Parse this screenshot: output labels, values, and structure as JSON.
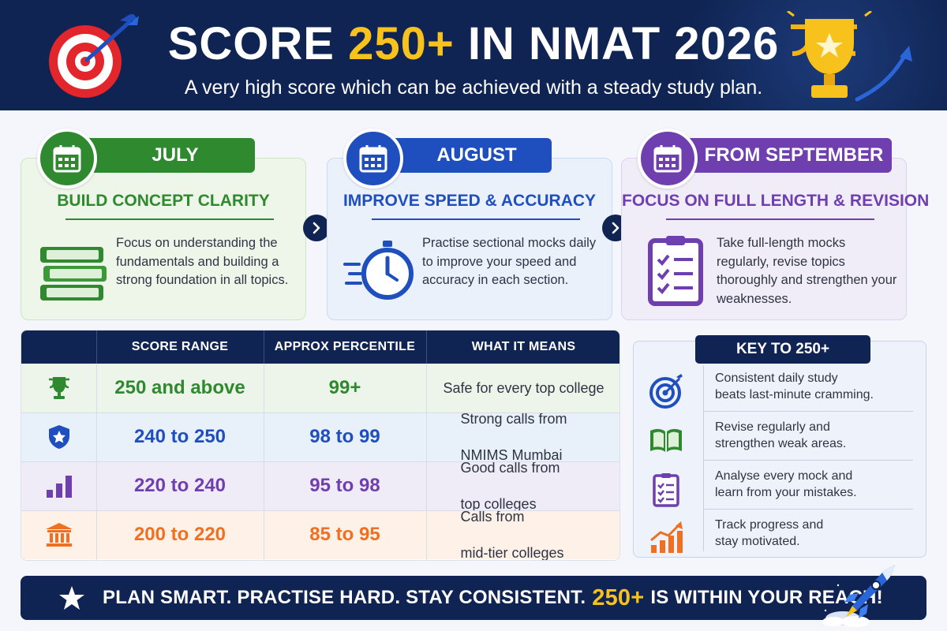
{
  "header": {
    "title_prefix": "SCORE ",
    "title_highlight": "250+",
    "title_suffix": " IN NMAT 2026",
    "subtitle": "A very high score which can be achieved with a steady study plan."
  },
  "phases": [
    {
      "month": "JULY",
      "title": "BUILD CONCEPT CLARITY",
      "text": "Focus on understanding the fundamentals and building a strong foundation in all topics.",
      "icon": "calendar-icon",
      "art": "books-icon",
      "color": "#2f8a2f"
    },
    {
      "month": "AUGUST",
      "title": "IMPROVE SPEED & ACCURACY",
      "text": "Practise sectional mocks daily to improve your speed and accuracy in each section.",
      "icon": "calendar-icon",
      "art": "stopwatch-icon",
      "color": "#1f4fbf"
    },
    {
      "month": "FROM SEPTEMBER",
      "title": "FOCUS ON FULL LENGTH & REVISION",
      "text": "Take full-length mocks regularly, revise topics thoroughly and strengthen your weaknesses.",
      "icon": "calendar-icon",
      "art": "checklist-icon",
      "color": "#6f3fb0"
    }
  ],
  "table": {
    "headers": [
      "SCORE RANGE",
      "APPROX PERCENTILE",
      "WHAT IT MEANS"
    ],
    "rows": [
      {
        "icon": "trophy-icon",
        "score": "250 and above",
        "percentile": "99+",
        "meaning_1": "Safe for every top college",
        "meaning_2": "",
        "color": "#2f8a2f"
      },
      {
        "icon": "shield-star-icon",
        "score": "240 to 250",
        "percentile": "98 to 99",
        "meaning_1": "Strong calls from",
        "meaning_2": "NMIMS Mumbai",
        "color": "#1f4fbf"
      },
      {
        "icon": "bar-chart-icon",
        "score": "220 to 240",
        "percentile": "95 to 98",
        "meaning_1": "Good calls from",
        "meaning_2": "top colleges",
        "color": "#6f3fb0"
      },
      {
        "icon": "institution-icon",
        "score": "200 to 220",
        "percentile": "85 to 95",
        "meaning_1": "Calls from",
        "meaning_2": "mid-tier colleges",
        "color": "#ef7022"
      }
    ]
  },
  "key": {
    "title": "KEY TO 250+",
    "items": [
      {
        "icon": "target-icon",
        "line_1": "Consistent daily study",
        "line_2": "beats last-minute cramming."
      },
      {
        "icon": "open-book-icon",
        "line_1": "Revise regularly and",
        "line_2": "strengthen weak areas."
      },
      {
        "icon": "checklist-icon",
        "line_1": "Analyse every mock and",
        "line_2": "learn from your mistakes."
      },
      {
        "icon": "growth-chart-icon",
        "line_1": "Track progress and",
        "line_2": "stay motivated."
      }
    ]
  },
  "footer": {
    "text_before": "PLAN SMART. PRACTISE HARD. STAY CONSISTENT.",
    "highlight": "250+",
    "text_after": "IS WITHIN YOUR REACH!"
  },
  "colors": {
    "navy": "#0f2452",
    "gold": "#f7c21c",
    "green": "#2f8a2f",
    "blue": "#1f4fbf",
    "purple": "#6f3fb0",
    "orange": "#ef7022"
  }
}
